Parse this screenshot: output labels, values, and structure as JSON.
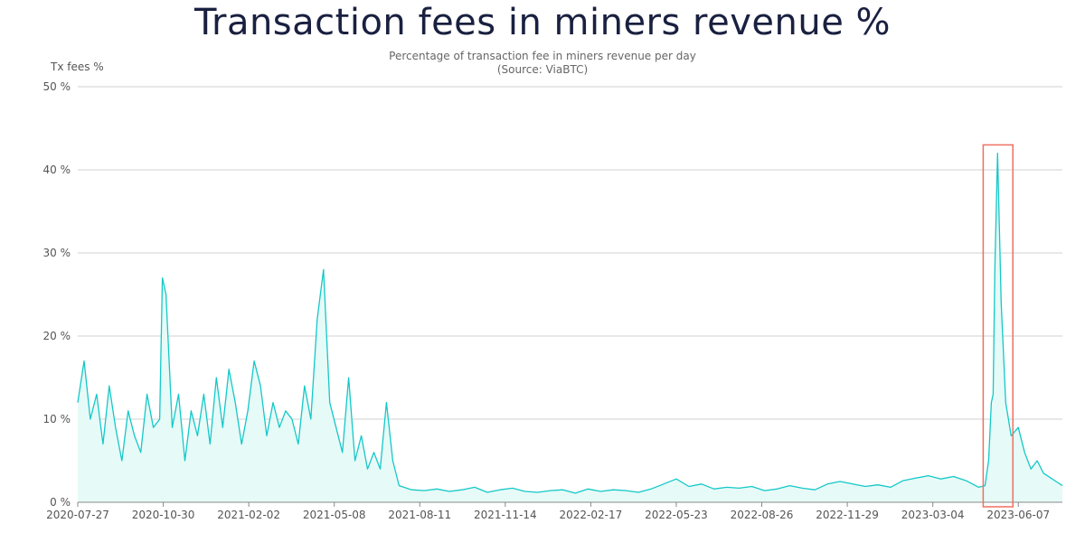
{
  "chart_data": {
    "type": "area",
    "title": "Transaction fees in miners revenue %",
    "subtitle": "Percentage of transaction fee in miners revenue per day",
    "source": "(Source: ViaBTC)",
    "ylabel": "Tx fees %",
    "ylim": [
      0,
      50
    ],
    "y_ticks": [
      "0 %",
      "10 %",
      "20 %",
      "30 %",
      "40 %",
      "50 %"
    ],
    "x_ticks": [
      "2020-07-27",
      "2020-10-30",
      "2021-02-02",
      "2021-05-08",
      "2021-08-11",
      "2021-11-14",
      "2022-02-17",
      "2022-05-23",
      "2022-08-26",
      "2022-11-29",
      "2023-03-04",
      "2023-06-07"
    ],
    "grid": true,
    "line_color": "#14c8c8",
    "fill_color": "#e6faf7",
    "highlight_color": "#f07060",
    "highlight_range": [
      "2023-04-29",
      "2023-06-01"
    ],
    "series": [
      {
        "x": [
          "2020-07-27",
          "2020-08-03",
          "2020-08-10",
          "2020-08-17",
          "2020-08-24",
          "2020-08-31",
          "2020-09-07",
          "2020-09-14",
          "2020-09-21",
          "2020-09-28",
          "2020-10-05",
          "2020-10-12",
          "2020-10-19",
          "2020-10-26",
          "2020-10-29",
          "2020-11-02",
          "2020-11-09",
          "2020-11-16",
          "2020-11-23",
          "2020-11-30",
          "2020-12-07",
          "2020-12-14",
          "2020-12-21",
          "2020-12-28",
          "2021-01-04",
          "2021-01-11",
          "2021-01-18",
          "2021-01-25",
          "2021-02-01",
          "2021-02-08",
          "2021-02-15",
          "2021-02-22",
          "2021-03-01",
          "2021-03-08",
          "2021-03-15",
          "2021-03-22",
          "2021-03-29",
          "2021-04-05",
          "2021-04-12",
          "2021-04-19",
          "2021-04-26",
          "2021-05-03",
          "2021-05-10",
          "2021-05-17",
          "2021-05-24",
          "2021-05-31",
          "2021-06-07",
          "2021-06-14",
          "2021-06-21",
          "2021-06-28",
          "2021-07-05",
          "2021-07-12",
          "2021-07-19",
          "2021-08-02",
          "2021-08-16",
          "2021-08-30",
          "2021-09-13",
          "2021-09-27",
          "2021-10-11",
          "2021-10-25",
          "2021-11-08",
          "2021-11-22",
          "2021-12-06",
          "2021-12-20",
          "2022-01-03",
          "2022-01-17",
          "2022-01-31",
          "2022-02-14",
          "2022-02-28",
          "2022-03-14",
          "2022-03-28",
          "2022-04-11",
          "2022-04-25",
          "2022-05-09",
          "2022-05-23",
          "2022-06-06",
          "2022-06-20",
          "2022-07-04",
          "2022-07-18",
          "2022-08-01",
          "2022-08-15",
          "2022-08-29",
          "2022-09-12",
          "2022-09-26",
          "2022-10-10",
          "2022-10-24",
          "2022-11-07",
          "2022-11-21",
          "2022-12-05",
          "2022-12-19",
          "2023-01-02",
          "2023-01-16",
          "2023-01-30",
          "2023-02-13",
          "2023-02-27",
          "2023-03-13",
          "2023-03-27",
          "2023-04-10",
          "2023-04-24",
          "2023-05-01",
          "2023-05-05",
          "2023-05-08",
          "2023-05-10",
          "2023-05-12",
          "2023-05-15",
          "2023-05-19",
          "2023-05-24",
          "2023-05-30",
          "2023-06-07",
          "2023-06-14",
          "2023-06-21",
          "2023-06-28",
          "2023-07-05",
          "2023-07-12",
          "2023-07-19",
          "2023-07-26"
        ],
        "values": [
          12,
          17,
          10,
          13,
          7,
          14,
          9,
          5,
          11,
          8,
          6,
          13,
          9,
          10,
          27,
          25,
          9,
          13,
          5,
          11,
          8,
          13,
          7,
          15,
          9,
          16,
          12,
          7,
          11,
          17,
          14,
          8,
          12,
          9,
          11,
          10,
          7,
          14,
          10,
          22,
          28,
          12,
          9,
          6,
          15,
          5,
          8,
          4,
          6,
          4,
          12,
          5,
          2,
          1.5,
          1.4,
          1.6,
          1.3,
          1.5,
          1.8,
          1.2,
          1.5,
          1.7,
          1.3,
          1.2,
          1.4,
          1.5,
          1.1,
          1.6,
          1.3,
          1.5,
          1.4,
          1.2,
          1.6,
          2.2,
          2.8,
          1.9,
          2.2,
          1.6,
          1.8,
          1.7,
          1.9,
          1.4,
          1.6,
          2.0,
          1.7,
          1.5,
          2.2,
          2.5,
          2.2,
          1.9,
          2.1,
          1.8,
          2.6,
          2.9,
          3.2,
          2.8,
          3.1,
          2.6,
          1.8,
          2.0,
          5,
          12,
          13,
          28,
          42,
          24,
          12,
          8,
          9,
          6,
          4,
          5,
          3.5,
          3,
          2.5,
          2
        ]
      }
    ]
  }
}
